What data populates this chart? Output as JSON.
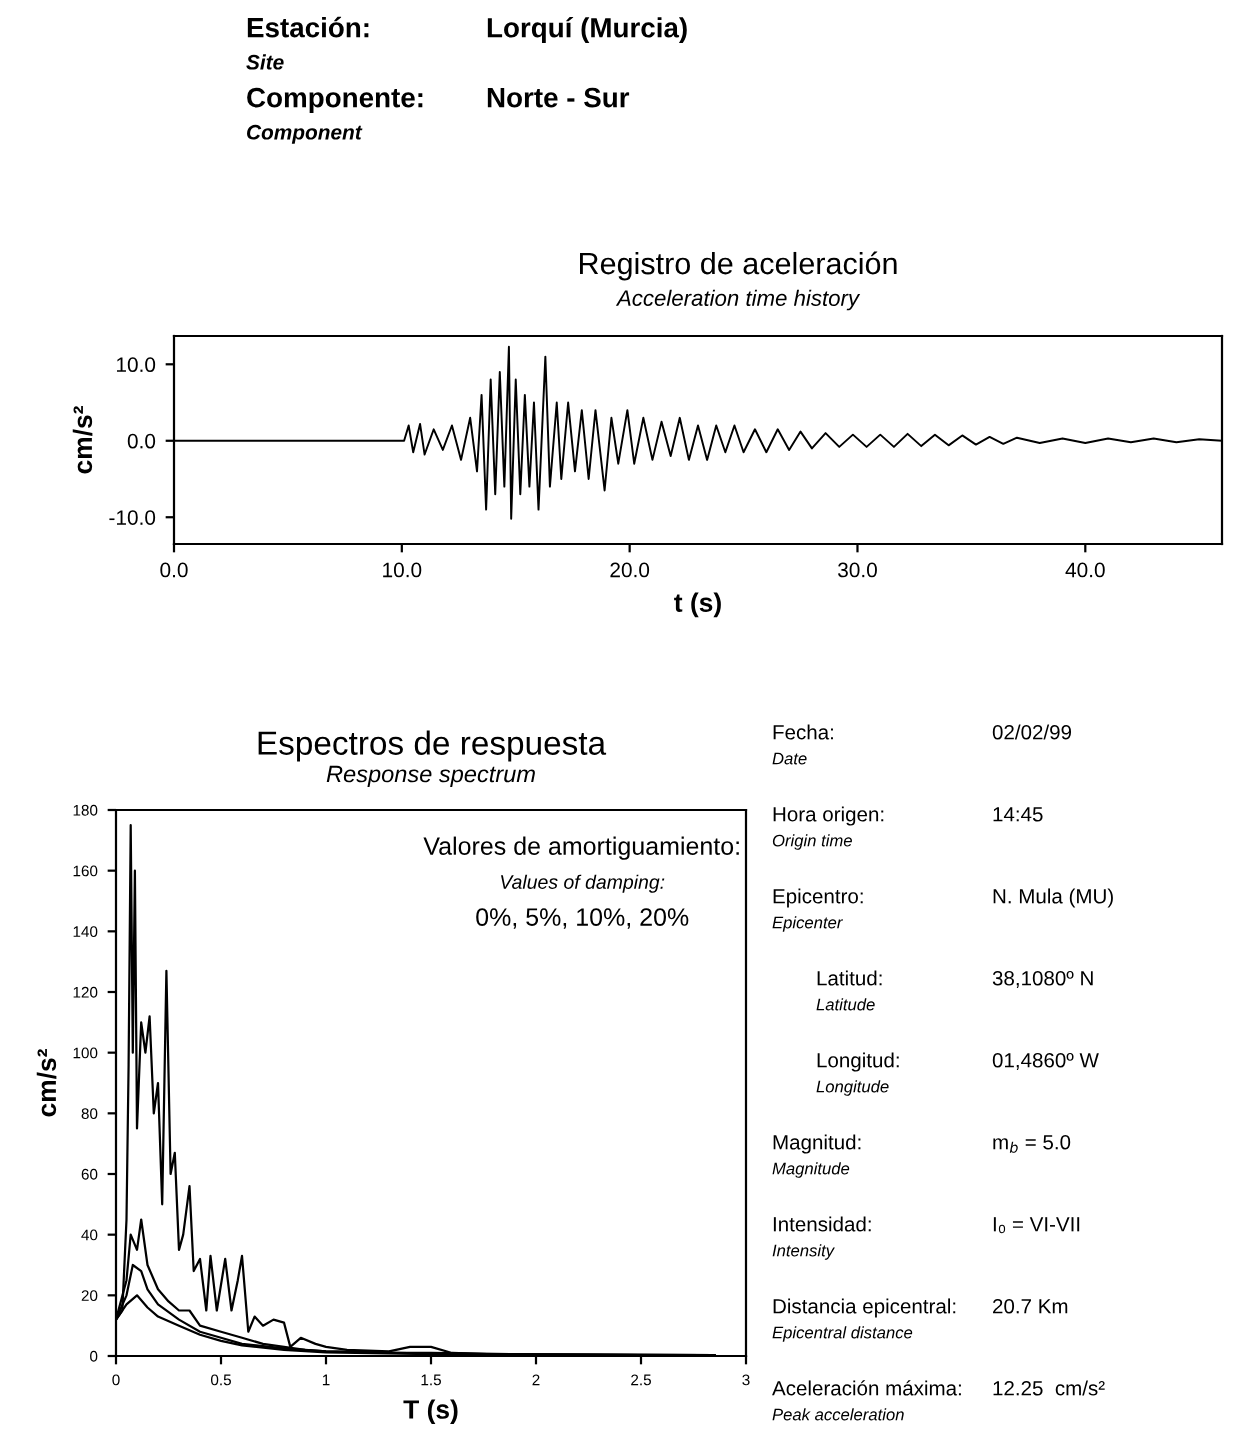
{
  "chart_data": [
    {
      "type": "other",
      "annotations": [
        "Estación:",
        "Lorquí (Murcia)",
        "Site",
        "Componente:",
        "Norte - Sur",
        "Component"
      ]
    },
    {
      "type": "line",
      "title": "Registro de aceleración",
      "subtitle": "Acceleration time history",
      "xlabel": "t (s)",
      "ylabel": "cm/s²",
      "x": [
        0,
        10.1,
        10.3,
        10.5,
        10.8,
        11.0,
        11.4,
        11.8,
        12.2,
        12.6,
        13.0,
        13.3,
        13.5,
        13.7,
        13.9,
        14.1,
        14.3,
        14.5,
        14.7,
        14.8,
        15.0,
        15.2,
        15.4,
        15.6,
        15.8,
        16.0,
        16.3,
        16.5,
        16.8,
        17.0,
        17.3,
        17.6,
        17.9,
        18.2,
        18.5,
        18.9,
        19.2,
        19.5,
        19.9,
        20.2,
        20.6,
        21.0,
        21.4,
        21.8,
        22.2,
        22.6,
        23.0,
        23.4,
        23.8,
        24.2,
        24.6,
        25.0,
        25.5,
        26.0,
        26.5,
        27.0,
        27.5,
        28.0,
        28.6,
        29.2,
        29.8,
        30.4,
        31.0,
        31.6,
        32.2,
        32.8,
        33.4,
        34.0,
        34.6,
        35.2,
        35.8,
        36.4,
        37.0,
        38,
        39,
        40,
        41,
        42,
        43,
        44,
        45,
        46
      ],
      "series": [
        {
          "color": "#000000",
          "values": [
            0,
            0,
            2,
            -1.5,
            2.2,
            -1.8,
            1.5,
            -1.2,
            2,
            -2.5,
            3,
            -4,
            6,
            -9,
            8,
            -7,
            9,
            -6,
            12.3,
            -10.2,
            8,
            -7,
            6,
            -6,
            5,
            -9,
            11,
            -6,
            5,
            -5,
            5,
            -4,
            4,
            -5,
            4,
            -6.5,
            3,
            -3,
            4,
            -3,
            3,
            -2.5,
            2.5,
            -2,
            3,
            -2.5,
            2,
            -2.5,
            2,
            -1.5,
            2,
            -1.5,
            1.5,
            -1.5,
            1.5,
            -1.2,
            1.2,
            -1,
            1,
            -0.8,
            0.8,
            -0.8,
            0.8,
            -0.8,
            0.9,
            -0.7,
            0.8,
            -0.6,
            0.7,
            -0.5,
            0.5,
            -0.4,
            0.4,
            -0.3,
            0.3,
            -0.3,
            0.3,
            -0.2,
            0.3,
            -0.2,
            0.2,
            0
          ]
        }
      ],
      "xlim": [
        0,
        46
      ],
      "xticks": [
        {
          "value": 0,
          "label": "0.0"
        },
        {
          "value": 10,
          "label": "10.0"
        },
        {
          "value": 20,
          "label": "20.0"
        },
        {
          "value": 30,
          "label": "30.0"
        },
        {
          "value": 40,
          "label": "40.0"
        }
      ],
      "ylim": [
        -13.5,
        13.7
      ],
      "yticks": [
        {
          "value": -10,
          "label": "-10.0"
        },
        {
          "value": 0,
          "label": "0.0"
        },
        {
          "value": 10,
          "label": "10.0"
        }
      ],
      "grid": false
    },
    {
      "type": "line",
      "title": "Espectros de respuesta",
      "subtitle": "Response spectrum",
      "xlabel": "T (s)",
      "ylabel": "cm/s²",
      "annotations": [
        "Valores de amortiguamiento:",
        "Values of damping:",
        "0%, 5%, 10%, 20%"
      ],
      "series": [
        {
          "color": "#000000",
          "x": [
            0,
            0.03,
            0.05,
            0.06,
            0.07,
            0.08,
            0.09,
            0.1,
            0.12,
            0.14,
            0.16,
            0.18,
            0.2,
            0.22,
            0.24,
            0.26,
            0.28,
            0.3,
            0.32,
            0.35,
            0.37,
            0.4,
            0.43,
            0.45,
            0.48,
            0.52,
            0.55,
            0.58,
            0.6,
            0.63,
            0.66,
            0.7,
            0.75,
            0.8,
            0.83,
            0.88,
            0.95,
            1.0,
            1.1,
            1.3,
            1.4,
            1.5,
            1.6,
            1.8,
            2.0,
            2.5,
            2.85
          ],
          "values": [
            12,
            15,
            45,
            96,
            175,
            100,
            160,
            75,
            110,
            100,
            112,
            80,
            90,
            50,
            127,
            60,
            67,
            35,
            40,
            56,
            28,
            32,
            15,
            33,
            15,
            32,
            15,
            25,
            33,
            8,
            13,
            10,
            12,
            11,
            3,
            6,
            4,
            3,
            2,
            1.5,
            3,
            3,
            1,
            0.5,
            0.5,
            0.3,
            0.3
          ]
        },
        {
          "color": "#000000",
          "x": [
            0,
            0.05,
            0.07,
            0.1,
            0.12,
            0.15,
            0.2,
            0.25,
            0.3,
            0.35,
            0.4,
            0.5,
            0.55,
            0.6,
            0.7,
            0.8,
            0.9,
            1.0,
            1.3,
            1.5,
            2.0,
            2.85
          ],
          "values": [
            12,
            25,
            40,
            35,
            45,
            30,
            22,
            18,
            15,
            15,
            10,
            8,
            7,
            6,
            4,
            3,
            2,
            1.5,
            1,
            1,
            0.5,
            0.3
          ]
        },
        {
          "color": "#000000",
          "x": [
            0,
            0.05,
            0.08,
            0.12,
            0.15,
            0.2,
            0.3,
            0.4,
            0.5,
            0.6,
            0.8,
            1.0,
            1.5,
            2.0,
            2.85
          ],
          "values": [
            12,
            20,
            30,
            28,
            22,
            17,
            12,
            8,
            6,
            4,
            2.5,
            1.5,
            0.8,
            0.4,
            0.3
          ]
        },
        {
          "color": "#000000",
          "x": [
            0,
            0.05,
            0.1,
            0.15,
            0.2,
            0.3,
            0.4,
            0.5,
            0.6,
            0.8,
            1.0,
            1.5,
            2.85
          ],
          "values": [
            12,
            17,
            20,
            16,
            13,
            10,
            7,
            5,
            3.5,
            2,
            1.2,
            0.6,
            0.3
          ]
        }
      ],
      "xlim": [
        0,
        3
      ],
      "xticks": [
        0,
        0.5,
        1,
        1.5,
        2,
        2.5,
        3
      ],
      "ylim": [
        0,
        180
      ],
      "yticks": [
        0,
        20,
        40,
        60,
        80,
        100,
        120,
        140,
        160,
        180
      ],
      "grid": false
    },
    {
      "type": "other",
      "annotations": [
        "Fecha:",
        "Date",
        "02/02/99",
        "Hora origen:",
        "Origin time",
        "14:45",
        "Epicentro:",
        "Epicenter",
        "N. Mula (MU)",
        "Latitud:",
        "Latitude",
        "38,1080º N",
        "Longitud:",
        "Longitude",
        "01,4860º W",
        "Magnitud:",
        "Magnitude",
        "m$_{b}$ = 5.0",
        "Intensidad:",
        "Intensity",
        "I₀ = VI-VII",
        "Distancia epicentral:",
        "Epicentral distance",
        "20.7 Km",
        "Aceleración máxima:",
        "Peak acceleration",
        "12.25  cm/s²"
      ]
    }
  ]
}
